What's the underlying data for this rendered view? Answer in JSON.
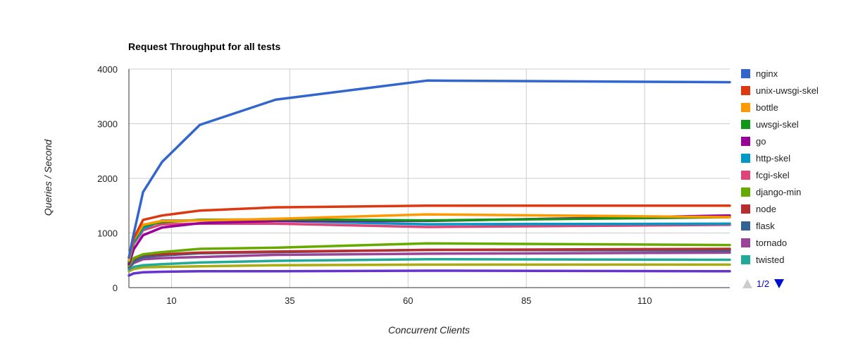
{
  "chart_data": {
    "type": "line",
    "title": "Request Throughput for all tests",
    "xlabel": "Concurrent Clients",
    "ylabel": "Queries / Second",
    "xlim": [
      1,
      128
    ],
    "ylim": [
      0,
      4000
    ],
    "x_ticks": [
      10,
      35,
      60,
      85,
      110
    ],
    "y_ticks": [
      0,
      1000,
      2000,
      3000,
      4000
    ],
    "grid": true,
    "legend_position": "right",
    "legend_page": "1/2",
    "x": [
      1,
      2,
      4,
      8,
      16,
      32,
      64,
      128
    ],
    "series": [
      {
        "name": "nginx",
        "color": "#3366cc",
        "values": [
          550,
          980,
          1750,
          2300,
          2980,
          3440,
          3790,
          3760
        ]
      },
      {
        "name": "unix-uwsgi-skel",
        "color": "#dc3912",
        "values": [
          550,
          900,
          1240,
          1320,
          1410,
          1470,
          1500,
          1500
        ]
      },
      {
        "name": "bottle",
        "color": "#ff9900",
        "values": [
          500,
          880,
          1150,
          1220,
          1230,
          1260,
          1340,
          1290
        ]
      },
      {
        "name": "uwsgi-skel",
        "color": "#109618",
        "values": [
          480,
          850,
          1130,
          1200,
          1240,
          1250,
          1230,
          1290
        ]
      },
      {
        "name": "go",
        "color": "#990099",
        "values": [
          430,
          700,
          960,
          1100,
          1180,
          1220,
          1220,
          1320
        ]
      },
      {
        "name": "http-skel",
        "color": "#0099c6",
        "values": [
          460,
          820,
          1080,
          1230,
          1230,
          1220,
          1160,
          1170
        ]
      },
      {
        "name": "fcgi-skel",
        "color": "#dd4477",
        "values": [
          440,
          800,
          1050,
          1160,
          1170,
          1170,
          1110,
          1150
        ]
      },
      {
        "name": "django-min",
        "color": "#66aa00",
        "values": [
          400,
          540,
          610,
          650,
          710,
          730,
          810,
          780
        ]
      },
      {
        "name": "node",
        "color": "#b82e2e",
        "values": [
          420,
          520,
          600,
          610,
          640,
          660,
          690,
          710
        ]
      },
      {
        "name": "flask",
        "color": "#316395",
        "values": [
          380,
          480,
          560,
          590,
          630,
          650,
          690,
          680
        ]
      },
      {
        "name": "tornado",
        "color": "#994499",
        "values": [
          360,
          450,
          520,
          540,
          560,
          600,
          620,
          640
        ]
      },
      {
        "name": "twisted",
        "color": "#22aa99",
        "values": [
          330,
          380,
          410,
          430,
          460,
          490,
          520,
          510
        ]
      },
      {
        "name": "",
        "color": "#aaaa11",
        "values": [
          300,
          340,
          370,
          380,
          390,
          410,
          420,
          420
        ]
      },
      {
        "name": "",
        "color": "#6633cc",
        "values": [
          220,
          260,
          280,
          290,
          300,
          300,
          310,
          300
        ]
      }
    ]
  }
}
